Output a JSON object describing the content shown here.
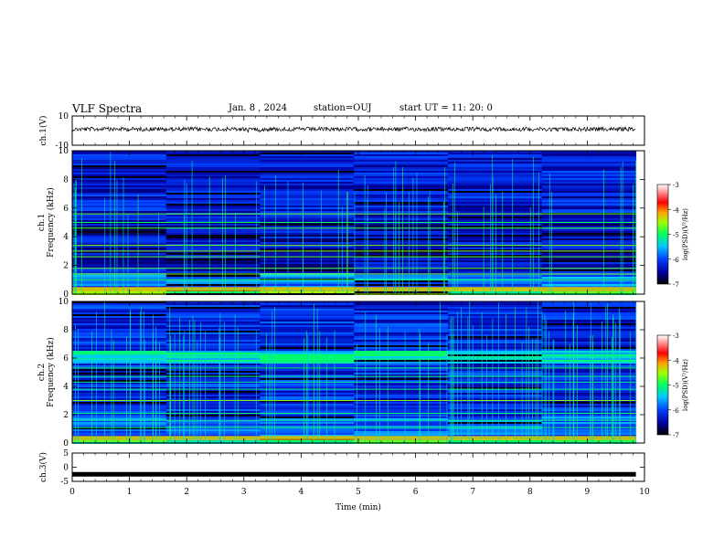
{
  "header": {
    "title": "VLF Spectra",
    "date": "Jan. 8 , 2024",
    "station": "station=OUJ",
    "start": "start UT =  11: 20: 0"
  },
  "chart_data": [
    {
      "type": "line",
      "ylabel": "ch.1(V)",
      "ylim": [
        -10,
        10
      ],
      "yticks": [
        "10",
        "-10"
      ],
      "trace_level": 1,
      "color": "#000000"
    },
    {
      "type": "heatmap",
      "ylabel_lines": [
        "ch.1",
        "Frequency (kHz)"
      ],
      "ylim": [
        0,
        10
      ],
      "yticks": [
        "0",
        "2",
        "4",
        "6",
        "8",
        "10"
      ],
      "colorbar": {
        "label": "log(PSD)(V²/Hz)",
        "range": [
          -7,
          -3
        ],
        "ticks": [
          "-3",
          "-4",
          "-5",
          "-6",
          "-7"
        ]
      }
    },
    {
      "type": "heatmap",
      "ylabel_lines": [
        "ch.2",
        "Frequency (kHz)"
      ],
      "ylim": [
        0,
        10
      ],
      "yticks": [
        "0",
        "2",
        "4",
        "6",
        "8",
        "10"
      ],
      "colorbar": {
        "label": "log(PSD)(V²/Hz)",
        "range": [
          -7,
          -3
        ],
        "ticks": [
          "-3",
          "-4",
          "-5",
          "-6",
          "-7"
        ]
      }
    },
    {
      "type": "line",
      "ylabel": "ch.3(V)",
      "ylim": [
        -5,
        5
      ],
      "yticks": [
        "5",
        "0",
        "-5"
      ],
      "trace_level": -2.5,
      "color": "#000000"
    }
  ],
  "xaxis": {
    "label": "Time (min)",
    "range": [
      0,
      10
    ],
    "ticks": [
      "0",
      "1",
      "2",
      "3",
      "4",
      "5",
      "6",
      "7",
      "8",
      "9",
      "10"
    ],
    "data_end": 9.85
  }
}
